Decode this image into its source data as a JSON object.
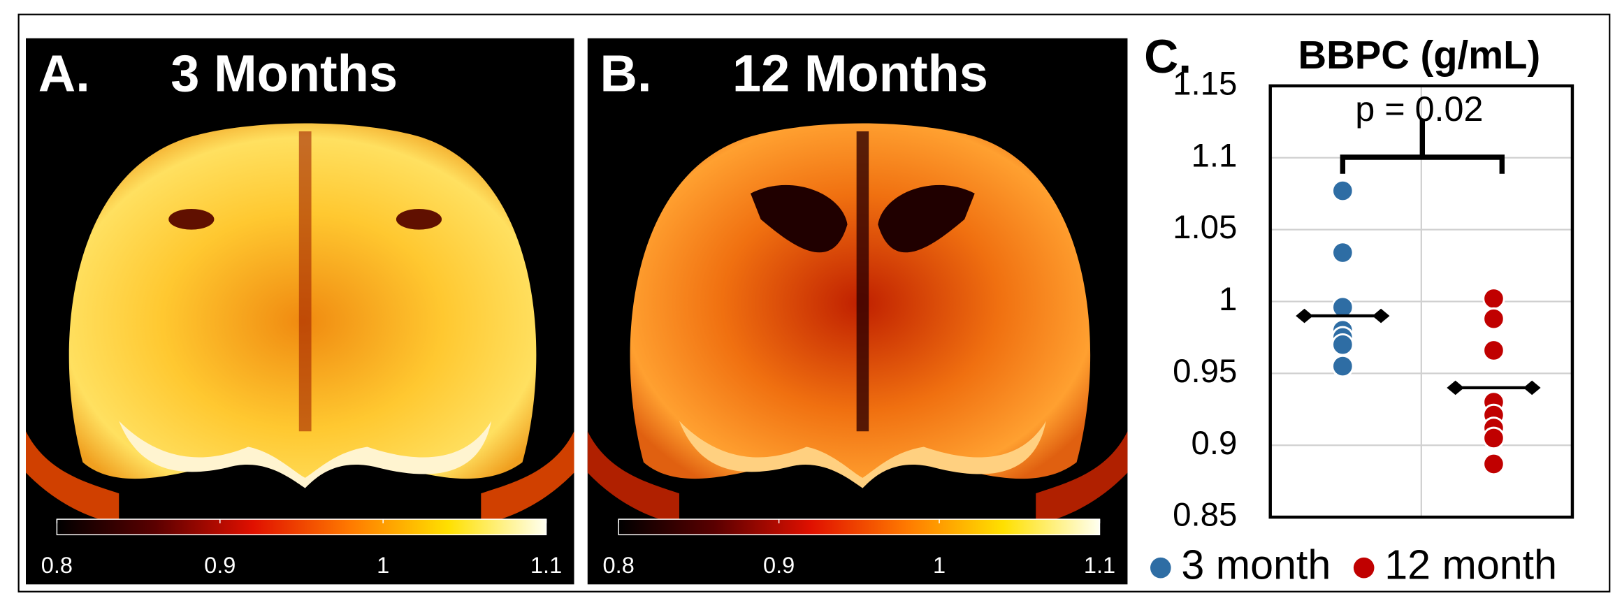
{
  "panels": [
    {
      "label": "A.",
      "title": "3 Months",
      "colorbar": {
        "lim": [
          0.8,
          1.1
        ],
        "ticks": [
          0.8,
          0.9,
          1,
          1.1
        ]
      }
    },
    {
      "label": "B.",
      "title": "12 Months",
      "colorbar": {
        "lim": [
          0.8,
          1.1
        ],
        "ticks": [
          0.8,
          0.9,
          1,
          1.1
        ]
      }
    }
  ],
  "chart_data": {
    "type": "scatter",
    "label": "C.",
    "title": "BBPC (g/mL)",
    "annotation": "p = 0.02",
    "ylim": [
      0.85,
      1.15
    ],
    "yticks": [
      0.85,
      0.9,
      0.95,
      1,
      1.05,
      1.1,
      1.15
    ],
    "grid": true,
    "legend": "bottom",
    "series": [
      {
        "name": "3 month",
        "color": "#2e6da4",
        "values": [
          1.077,
          1.034,
          0.996,
          0.98,
          0.975,
          0.97,
          0.955
        ],
        "mean": 0.99
      },
      {
        "name": "12 month",
        "color": "#c00000",
        "values": [
          1.002,
          0.988,
          0.966,
          0.93,
          0.921,
          0.912,
          0.905,
          0.887
        ],
        "mean": 0.94
      }
    ]
  }
}
